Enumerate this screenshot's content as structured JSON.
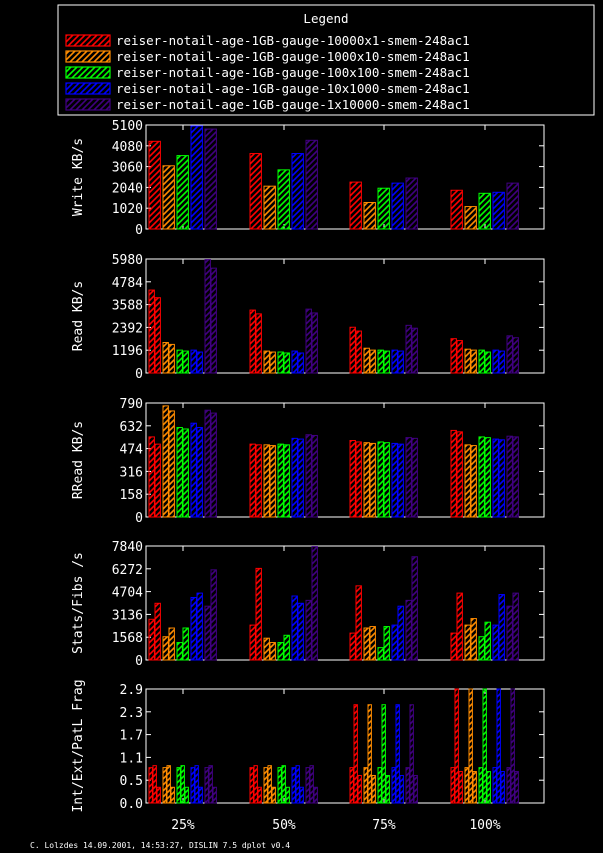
{
  "legend": {
    "title": "Legend",
    "entries": [
      {
        "label": "reiser-notail-age-1GB-gauge-10000x1-smem-248ac1",
        "color": "#ff0000"
      },
      {
        "label": "reiser-notail-age-1GB-gauge-1000x10-smem-248ac1",
        "color": "#ff8c00"
      },
      {
        "label": "reiser-notail-age-1GB-gauge-100x100-smem-248ac1",
        "color": "#00ff00"
      },
      {
        "label": "reiser-notail-age-1GB-gauge-10x1000-smem-248ac1",
        "color": "#0000ff"
      },
      {
        "label": "reiser-notail-age-1GB-gauge-1x10000-smem-248ac1",
        "color": "#400080"
      }
    ]
  },
  "footer": "C. Lolzdes 14.09.2001, 14:53:27, DISLIN 7.5 dplot v0.4",
  "chart_data": [
    {
      "type": "bar",
      "ylabel": "Write KB/s",
      "ylim": [
        0,
        5100
      ],
      "yticks": [
        "0",
        "1020",
        "2040",
        "3060",
        "4080",
        "5100"
      ],
      "categories": [
        "25%",
        "50%",
        "75%",
        "100%"
      ],
      "series": [
        {
          "name": "reiser-notail-age-1GB-gauge-10000x1-smem-248ac1",
          "values": [
            4300,
            3700,
            2300,
            1900
          ]
        },
        {
          "name": "reiser-notail-age-1GB-gauge-1000x10-smem-248ac1",
          "values": [
            3100,
            2100,
            1300,
            1100
          ]
        },
        {
          "name": "reiser-notail-age-1GB-gauge-100x100-smem-248ac1",
          "values": [
            3600,
            2900,
            2000,
            1750
          ]
        },
        {
          "name": "reiser-notail-age-1GB-gauge-10x1000-smem-248ac1",
          "values": [
            5050,
            3700,
            2250,
            1800
          ]
        },
        {
          "name": "reiser-notail-age-1GB-gauge-1x10000-smem-248ac1",
          "values": [
            4900,
            4350,
            2500,
            2250
          ]
        }
      ]
    },
    {
      "type": "bar",
      "ylabel": "Read KB/s",
      "ylim": [
        0,
        5980
      ],
      "yticks": [
        "0",
        "1196",
        "2392",
        "3588",
        "4784",
        "5980"
      ],
      "categories": [
        "25%",
        "50%",
        "75%",
        "100%"
      ],
      "series": [
        {
          "name": "reiser-notail-age-1GB-gauge-10000x1-smem-248ac1",
          "values": [
            [
              4350,
              3950
            ],
            [
              3300,
              3100
            ],
            [
              2400,
              2200
            ],
            [
              1800,
              1700
            ]
          ]
        },
        {
          "name": "reiser-notail-age-1GB-gauge-1000x10-smem-248ac1",
          "values": [
            [
              1600,
              1500
            ],
            [
              1150,
              1100
            ],
            [
              1300,
              1200
            ],
            [
              1250,
              1200
            ]
          ]
        },
        {
          "name": "reiser-notail-age-1GB-gauge-100x100-smem-248ac1",
          "values": [
            [
              1200,
              1150
            ],
            [
              1100,
              1050
            ],
            [
              1200,
              1150
            ],
            [
              1200,
              1100
            ]
          ]
        },
        {
          "name": "reiser-notail-age-1GB-gauge-10x1000-smem-248ac1",
          "values": [
            [
              1200,
              1100
            ],
            [
              1150,
              1050
            ],
            [
              1200,
              1150
            ],
            [
              1200,
              1150
            ]
          ]
        },
        {
          "name": "reiser-notail-age-1GB-gauge-1x10000-smem-248ac1",
          "values": [
            [
              5950,
              5500
            ],
            [
              3350,
              3150
            ],
            [
              2500,
              2350
            ],
            [
              1950,
              1850
            ]
          ]
        }
      ]
    },
    {
      "type": "bar",
      "ylabel": "RRead KB/s",
      "ylim": [
        0,
        790
      ],
      "yticks": [
        "0",
        "158",
        "316",
        "474",
        "632",
        "790"
      ],
      "categories": [
        "25%",
        "50%",
        "75%",
        "100%"
      ],
      "series": [
        {
          "name": "reiser-notail-age-1GB-gauge-10000x1-smem-248ac1",
          "values": [
            [
              555,
              505
            ],
            [
              505,
              500
            ],
            [
              530,
              520
            ],
            [
              600,
              590
            ]
          ]
        },
        {
          "name": "reiser-notail-age-1GB-gauge-1000x10-smem-248ac1",
          "values": [
            [
              770,
              735
            ],
            [
              500,
              495
            ],
            [
              515,
              510
            ],
            [
              500,
              495
            ]
          ]
        },
        {
          "name": "reiser-notail-age-1GB-gauge-100x100-smem-248ac1",
          "values": [
            [
              620,
              610
            ],
            [
              505,
              500
            ],
            [
              520,
              515
            ],
            [
              555,
              550
            ]
          ]
        },
        {
          "name": "reiser-notail-age-1GB-gauge-10x1000-smem-248ac1",
          "values": [
            [
              650,
              620
            ],
            [
              545,
              540
            ],
            [
              510,
              505
            ],
            [
              540,
              535
            ]
          ]
        },
        {
          "name": "reiser-notail-age-1GB-gauge-1x10000-smem-248ac1",
          "values": [
            [
              740,
              720
            ],
            [
              570,
              565
            ],
            [
              550,
              545
            ],
            [
              560,
              555
            ]
          ]
        }
      ]
    },
    {
      "type": "bar",
      "ylabel": "Stats/Fibs /s",
      "ylim": [
        0,
        7840
      ],
      "yticks": [
        "0",
        "1568",
        "3136",
        "4704",
        "6272",
        "7840"
      ],
      "categories": [
        "25%",
        "50%",
        "75%",
        "100%"
      ],
      "series": [
        {
          "name": "reiser-notail-age-1GB-gauge-10000x1-smem-248ac1",
          "values": [
            [
              2800,
              3900
            ],
            [
              2400,
              6300
            ],
            [
              1850,
              5100
            ],
            [
              1850,
              4600
            ]
          ]
        },
        {
          "name": "reiser-notail-age-1GB-gauge-1000x10-smem-248ac1",
          "values": [
            [
              1600,
              2200
            ],
            [
              1500,
              1200
            ],
            [
              2200,
              2300
            ],
            [
              2400,
              2850
            ]
          ]
        },
        {
          "name": "reiser-notail-age-1GB-gauge-100x100-smem-248ac1",
          "values": [
            [
              1200,
              2200
            ],
            [
              1200,
              1700
            ],
            [
              850,
              2300
            ],
            [
              1600,
              2600
            ]
          ]
        },
        {
          "name": "reiser-notail-age-1GB-gauge-10x1000-smem-248ac1",
          "values": [
            [
              4300,
              4600
            ],
            [
              4400,
              3900
            ],
            [
              2400,
              3700
            ],
            [
              2400,
              4500
            ]
          ]
        },
        {
          "name": "reiser-notail-age-1GB-gauge-1x10000-smem-248ac1",
          "values": [
            [
              3700,
              6200
            ],
            [
              4100,
              7800
            ],
            [
              4100,
              7100
            ],
            [
              3700,
              4600
            ]
          ]
        }
      ]
    },
    {
      "type": "bar",
      "ylabel": "Int/Ext/PatL Frag",
      "ylim": [
        0,
        2.9
      ],
      "yticks": [
        "0.0",
        "0.5",
        "1.1",
        "1.7",
        "2.3",
        "2.9"
      ],
      "categories": [
        "25%",
        "50%",
        "75%",
        "100%"
      ],
      "series": [
        {
          "name": "reiser-notail-age-1GB-gauge-10000x1-smem-248ac1",
          "values": [
            [
              0.9,
              0.95,
              0.4
            ],
            [
              0.9,
              0.95,
              0.4
            ],
            [
              0.9,
              2.5,
              0.7
            ],
            [
              0.9,
              2.9,
              0.8
            ]
          ]
        },
        {
          "name": "reiser-notail-age-1GB-gauge-1000x10-smem-248ac1",
          "values": [
            [
              0.9,
              0.95,
              0.4
            ],
            [
              0.9,
              0.95,
              0.4
            ],
            [
              0.9,
              2.5,
              0.7
            ],
            [
              0.9,
              2.9,
              0.8
            ]
          ]
        },
        {
          "name": "reiser-notail-age-1GB-gauge-100x100-smem-248ac1",
          "values": [
            [
              0.9,
              0.95,
              0.4
            ],
            [
              0.9,
              0.95,
              0.4
            ],
            [
              0.9,
              2.5,
              0.7
            ],
            [
              0.9,
              2.9,
              0.8
            ]
          ]
        },
        {
          "name": "reiser-notail-age-1GB-gauge-10x1000-smem-248ac1",
          "values": [
            [
              0.9,
              0.95,
              0.4
            ],
            [
              0.9,
              0.95,
              0.4
            ],
            [
              0.9,
              2.5,
              0.7
            ],
            [
              0.9,
              2.9,
              0.8
            ]
          ]
        },
        {
          "name": "reiser-notail-age-1GB-gauge-1x10000-smem-248ac1",
          "values": [
            [
              0.9,
              0.95,
              0.4
            ],
            [
              0.9,
              0.95,
              0.4
            ],
            [
              0.9,
              2.5,
              0.7
            ],
            [
              0.9,
              2.9,
              0.8
            ]
          ]
        }
      ]
    }
  ]
}
